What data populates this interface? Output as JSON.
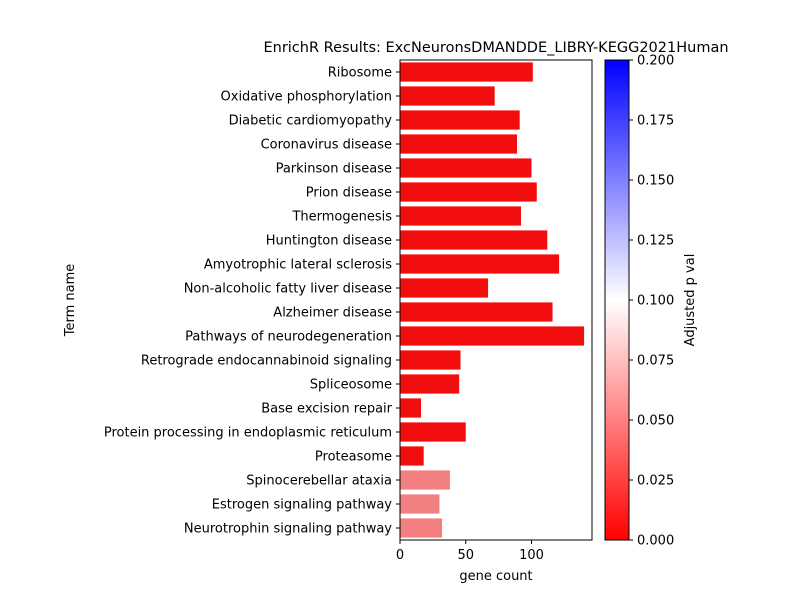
{
  "chart_data": {
    "type": "bar",
    "orientation": "horizontal",
    "title": "EnrichR Results: ExcNeuronsDMANDDE_LIBRY-KEGG2021Human",
    "xlabel": "gene count",
    "ylabel": "Term name",
    "xlim": [
      0,
      146
    ],
    "xticks": [
      0,
      50,
      100
    ],
    "categories": [
      "Ribosome",
      "Oxidative phosphorylation",
      "Diabetic cardiomyopathy",
      "Coronavirus disease",
      "Parkinson disease",
      "Prion disease",
      "Thermogenesis",
      "Huntington disease",
      "Amyotrophic lateral sclerosis",
      "Non-alcoholic fatty liver disease",
      "Alzheimer disease",
      "Pathways of neurodegeneration",
      "Retrograde endocannabinoid signaling",
      "Spliceosome",
      "Base excision repair",
      "Protein processing in endoplasmic reticulum",
      "Proteasome",
      "Spinocerebellar ataxia",
      "Estrogen signaling pathway",
      "Neurotrophin signaling pathway"
    ],
    "values": [
      101,
      72,
      91,
      89,
      100,
      104,
      92,
      112,
      121,
      67,
      116,
      140,
      46,
      45,
      16,
      50,
      18,
      38,
      30,
      32
    ],
    "adjusted_p_val": [
      0.0005,
      0.0005,
      0.0005,
      0.0005,
      0.0005,
      0.0005,
      0.0005,
      0.0005,
      0.0005,
      0.0005,
      0.0005,
      0.0005,
      0.0005,
      0.0005,
      0.0005,
      0.0005,
      0.0005,
      0.05,
      0.05,
      0.05
    ],
    "colorbar": {
      "label": "Adjusted p val",
      "range": [
        0,
        0.2
      ],
      "ticks": [
        "0.000",
        "0.025",
        "0.050",
        "0.075",
        "0.100",
        "0.125",
        "0.150",
        "0.175",
        "0.200"
      ],
      "colors": [
        "#ff0000",
        "#ffffff",
        "#0000ff"
      ]
    },
    "grid": false,
    "legend": "none"
  }
}
